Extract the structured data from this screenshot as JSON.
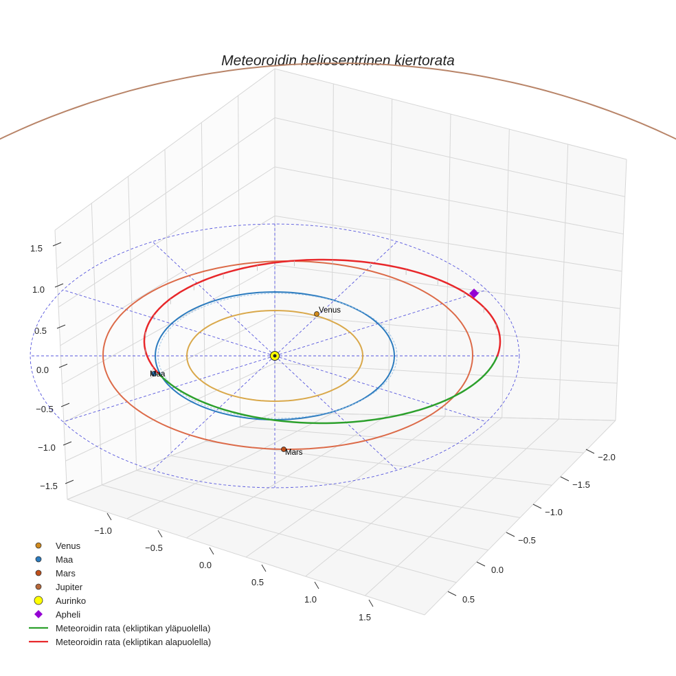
{
  "chart_data": {
    "type": "line",
    "title": "Meteoroidin heliosentrinen kiertorata",
    "projection": "3d",
    "axes": {
      "x": {
        "ticks": [
          "−1.0",
          "−0.5",
          "0.0",
          "0.5",
          "1.0",
          "1.5"
        ]
      },
      "y": {
        "ticks": [
          "−2.0",
          "−1.5",
          "−1.0",
          "−0.5",
          "0.0",
          "0.5"
        ]
      },
      "z": {
        "ticks": [
          "1.5",
          "1.0",
          "0.5",
          "0.0",
          "−0.5",
          "−1.0",
          "−1.5"
        ]
      }
    },
    "planet_labels": {
      "venus": "Venus",
      "earth": "Maa",
      "mars": "Mars"
    },
    "legend": [
      {
        "label": "Venus",
        "marker": "circle",
        "color": "#d08a1e"
      },
      {
        "label": "Maa",
        "marker": "circle",
        "color": "#2b7bbf"
      },
      {
        "label": "Mars",
        "marker": "circle",
        "color": "#c0501a"
      },
      {
        "label": "Jupiter",
        "marker": "circle",
        "color": "#b8683a"
      },
      {
        "label": "Aurinko",
        "marker": "circle",
        "color": "#ffff00"
      },
      {
        "label": "Apheli",
        "marker": "diamond",
        "color": "#9400d3"
      },
      {
        "label": "Meteoroidin rata (ekliptikan yläpuolella)",
        "marker": "line",
        "color": "#2ca02c"
      },
      {
        "label": "Meteoroidin rata (ekliptikan alapuolella)",
        "marker": "line",
        "color": "#e8272a"
      }
    ],
    "colors": {
      "venus_orbit": "#d9a84a",
      "earth_orbit": "#2b7bbf",
      "mars_orbit": "#dc6a48",
      "jupiter_orbit": "#b88468",
      "above_ecliptic": "#2ca02c",
      "below_ecliptic": "#e8272a",
      "ecliptic_grid": "#5555dd",
      "sun": "#ffff00",
      "aphelion": "#9400d3"
    },
    "grid": true
  }
}
